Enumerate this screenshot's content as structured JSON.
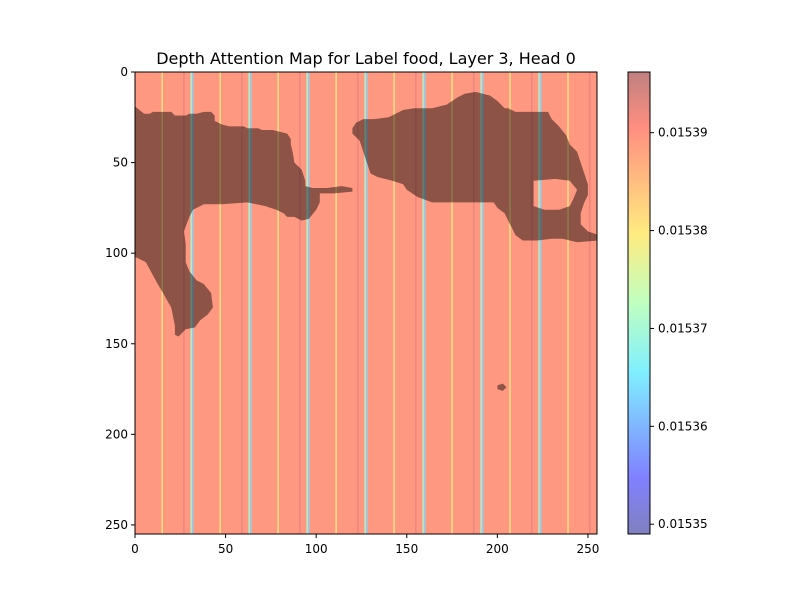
{
  "chart_data": {
    "type": "heatmap",
    "title": "Depth Attention Map for Label food, Layer 3, Head 0",
    "xlabel": "",
    "ylabel": "",
    "xlim": [
      0,
      255
    ],
    "ylim": [
      255,
      0
    ],
    "x_ticks": [
      0,
      50,
      100,
      150,
      200,
      250
    ],
    "y_ticks": [
      0,
      50,
      100,
      150,
      200,
      250
    ],
    "grid": false,
    "colormap": "jet",
    "overlay_alpha": 0.5,
    "colorbar": {
      "min": 0.015349,
      "max": 0.0153962,
      "ticks": [
        0.01535,
        0.01536,
        0.01537,
        0.01538,
        0.01539
      ],
      "tick_labels": [
        "0.01535",
        "0.01536",
        "0.01537",
        "0.01538",
        "0.01539"
      ]
    },
    "column_stripes": [
      {
        "x": 15,
        "value": 0.01538
      },
      {
        "x": 27,
        "value": 0.015392
      },
      {
        "x": 31,
        "value": 0.01537
      },
      {
        "x": 32,
        "value": 0.015363
      },
      {
        "x": 47,
        "value": 0.01538
      },
      {
        "x": 59,
        "value": 0.015392
      },
      {
        "x": 63,
        "value": 0.01537
      },
      {
        "x": 64,
        "value": 0.015363
      },
      {
        "x": 79,
        "value": 0.01538
      },
      {
        "x": 91,
        "value": 0.015392
      },
      {
        "x": 95,
        "value": 0.01537
      },
      {
        "x": 96,
        "value": 0.015363
      },
      {
        "x": 111,
        "value": 0.01538
      },
      {
        "x": 123,
        "value": 0.015392
      },
      {
        "x": 127,
        "value": 0.01537
      },
      {
        "x": 128,
        "value": 0.015363
      },
      {
        "x": 143,
        "value": 0.01538
      },
      {
        "x": 155,
        "value": 0.015392
      },
      {
        "x": 159,
        "value": 0.01537
      },
      {
        "x": 160,
        "value": 0.015363
      },
      {
        "x": 175,
        "value": 0.01538
      },
      {
        "x": 187,
        "value": 0.015392
      },
      {
        "x": 191,
        "value": 0.01537
      },
      {
        "x": 192,
        "value": 0.015363
      },
      {
        "x": 207,
        "value": 0.01538
      },
      {
        "x": 219,
        "value": 0.015392
      },
      {
        "x": 223,
        "value": 0.01537
      },
      {
        "x": 224,
        "value": 0.015363
      },
      {
        "x": 239,
        "value": 0.01538
      },
      {
        "x": 251,
        "value": 0.015392
      }
    ],
    "base_value": 0.015388,
    "depth_mask_regions": [
      {
        "points": [
          [
            0,
            19
          ],
          [
            5,
            23
          ],
          [
            8,
            23
          ],
          [
            10,
            22
          ],
          [
            20,
            22
          ],
          [
            22,
            24
          ],
          [
            28,
            24
          ],
          [
            30,
            23
          ],
          [
            34,
            23
          ],
          [
            38,
            22
          ],
          [
            42,
            22
          ],
          [
            44,
            24
          ],
          [
            44,
            27
          ],
          [
            48,
            29
          ],
          [
            52,
            30
          ],
          [
            60,
            30
          ],
          [
            62,
            31
          ],
          [
            68,
            31
          ],
          [
            70,
            32
          ],
          [
            76,
            32
          ],
          [
            80,
            33
          ],
          [
            84,
            34
          ],
          [
            86,
            37
          ],
          [
            86,
            40
          ],
          [
            87,
            44
          ],
          [
            88,
            50
          ],
          [
            92,
            54
          ],
          [
            94,
            60
          ],
          [
            94,
            63
          ],
          [
            98,
            64
          ],
          [
            106,
            64
          ],
          [
            114,
            63
          ],
          [
            120,
            64
          ],
          [
            120,
            66
          ],
          [
            110,
            67
          ],
          [
            102,
            67
          ],
          [
            102,
            72
          ],
          [
            100,
            76
          ],
          [
            96,
            81
          ],
          [
            92,
            82
          ],
          [
            88,
            80
          ],
          [
            84,
            80
          ],
          [
            82,
            78
          ],
          [
            78,
            76
          ],
          [
            72,
            74
          ],
          [
            62,
            72
          ],
          [
            48,
            73
          ],
          [
            38,
            73
          ],
          [
            32,
            76
          ],
          [
            30,
            80
          ],
          [
            27,
            88
          ],
          [
            28,
            95
          ],
          [
            28,
            105
          ],
          [
            30,
            110
          ],
          [
            34,
            115
          ],
          [
            38,
            117
          ],
          [
            42,
            122
          ],
          [
            43,
            130
          ],
          [
            40,
            134
          ],
          [
            36,
            137
          ],
          [
            33,
            141
          ],
          [
            28,
            142
          ],
          [
            24,
            146
          ],
          [
            22,
            145
          ],
          [
            22,
            140
          ],
          [
            20,
            130
          ],
          [
            16,
            123
          ],
          [
            12,
            116
          ],
          [
            6,
            105
          ],
          [
            0,
            102
          ]
        ]
      },
      {
        "points": [
          [
            120,
            31
          ],
          [
            122,
            28
          ],
          [
            126,
            26
          ],
          [
            132,
            26
          ],
          [
            140,
            25
          ],
          [
            148,
            21
          ],
          [
            154,
            20
          ],
          [
            164,
            20
          ],
          [
            172,
            18
          ],
          [
            178,
            14
          ],
          [
            182,
            12
          ],
          [
            188,
            11
          ],
          [
            196,
            13
          ],
          [
            200,
            16
          ],
          [
            204,
            20
          ],
          [
            206,
            20
          ],
          [
            210,
            22
          ],
          [
            218,
            22
          ],
          [
            224,
            22
          ],
          [
            228,
            22
          ],
          [
            230,
            26
          ],
          [
            234,
            30
          ],
          [
            238,
            35
          ],
          [
            240,
            40
          ],
          [
            244,
            44
          ],
          [
            246,
            50
          ],
          [
            248,
            56
          ],
          [
            250,
            62
          ],
          [
            250,
            68
          ],
          [
            248,
            72
          ],
          [
            246,
            78
          ],
          [
            246,
            84
          ],
          [
            250,
            88
          ],
          [
            256,
            90
          ],
          [
            256,
            93
          ],
          [
            244,
            94
          ],
          [
            236,
            92
          ],
          [
            230,
            92
          ],
          [
            222,
            93
          ],
          [
            214,
            93
          ],
          [
            210,
            90
          ],
          [
            208,
            86
          ],
          [
            206,
            82
          ],
          [
            204,
            78
          ],
          [
            200,
            75
          ],
          [
            198,
            72
          ],
          [
            196,
            72
          ],
          [
            180,
            72
          ],
          [
            164,
            72
          ],
          [
            156,
            69
          ],
          [
            150,
            65
          ],
          [
            148,
            62
          ],
          [
            142,
            60
          ],
          [
            134,
            58
          ],
          [
            130,
            56
          ],
          [
            128,
            50
          ],
          [
            126,
            44
          ],
          [
            124,
            38
          ],
          [
            120,
            34
          ]
        ]
      },
      {
        "points": [
          [
            200,
            173
          ],
          [
            203,
            172
          ],
          [
            205,
            174
          ],
          [
            203,
            176
          ],
          [
            200,
            175
          ]
        ]
      }
    ],
    "mask_holes": [
      {
        "points": [
          [
            220,
            60
          ],
          [
            232,
            59
          ],
          [
            240,
            60
          ],
          [
            244,
            65
          ],
          [
            242,
            70
          ],
          [
            240,
            74
          ],
          [
            234,
            76
          ],
          [
            226,
            76
          ],
          [
            220,
            74
          ],
          [
            220,
            68
          ]
        ]
      }
    ]
  }
}
